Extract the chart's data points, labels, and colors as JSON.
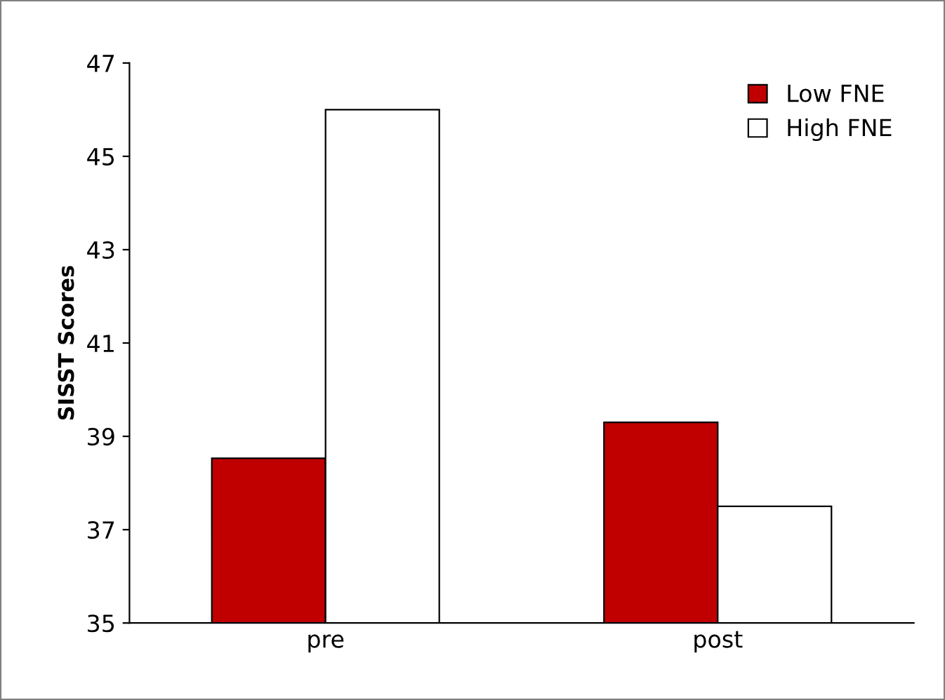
{
  "chart_data": {
    "type": "bar",
    "ylabel": "SISST Scores",
    "categories": [
      "pre",
      "post"
    ],
    "series": [
      {
        "name": "Low FNE",
        "color": "#c00000",
        "values": [
          38.53,
          39.3
        ]
      },
      {
        "name": "High FNE",
        "color": "#ffffff",
        "values": [
          46.0,
          37.5
        ]
      }
    ],
    "ylim": [
      35,
      47
    ],
    "yticks": [
      35,
      37,
      39,
      41,
      43,
      45,
      47
    ],
    "grid": false,
    "legend": "top right"
  }
}
